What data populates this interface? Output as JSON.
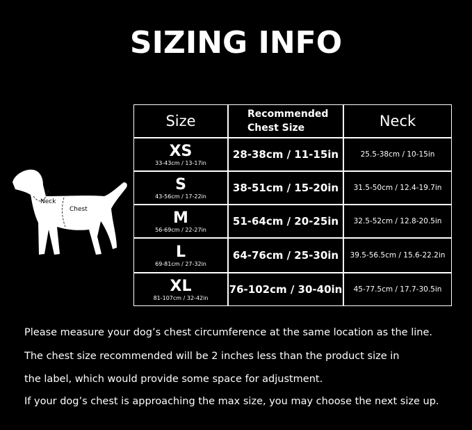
{
  "title": "SIZING INFO",
  "diagram": {
    "neck_label": "Neck",
    "chest_label": "Chest"
  },
  "table": {
    "header": [
      "Size",
      "Recommended Chest Size",
      "Neck"
    ],
    "rows": [
      {
        "size": "XS",
        "size_range": "33-43cm / 13-17in",
        "chest": "28-38cm / 11-15in",
        "neck": "25.5-38cm / 10-15in"
      },
      {
        "size": "S",
        "size_range": "43-56cm / 17-22in",
        "chest": "38-51cm / 15-20in",
        "neck": "31.5-50cm / 12.4-19.7in"
      },
      {
        "size": "M",
        "size_range": "56-69cm / 22-27in",
        "chest": "51-64cm / 20-25in",
        "neck": "32.5-52cm / 12.8-20.5in"
      },
      {
        "size": "L",
        "size_range": "69-81cm / 27-32in",
        "chest": "64-76cm / 25-30in",
        "neck": "39.5-56.5cm / 15.6-22.2in"
      },
      {
        "size": "XL",
        "size_range": "81-107cm / 32-42in",
        "chest": "76-102cm / 30-40in",
        "neck": "45-77.5cm / 17.7-30.5in"
      }
    ]
  },
  "notes": [
    "Please measure your dog’s chest circumference at the same location as the line.",
    "The chest size recommended will be 2 inches less than the product size in",
    "the label, which would provide some space for adjustment.",
    "If your dog’s chest is approaching the max size, you may choose the next size up."
  ]
}
